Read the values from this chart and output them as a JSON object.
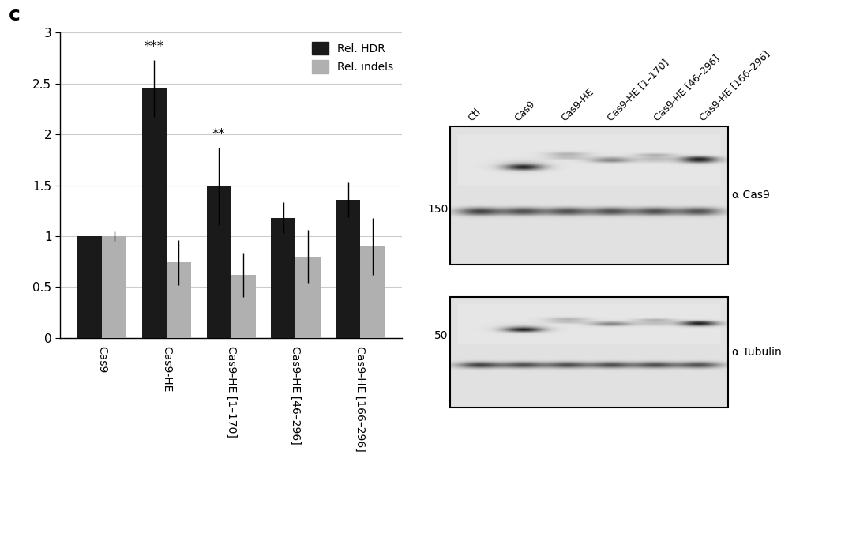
{
  "bar_categories": [
    "Cas9",
    "Cas9-HE",
    "Cas9-HE [1–170]",
    "Cas9-HE [46–296]",
    "Cas9-HE [166–296]"
  ],
  "hdr_values": [
    1.0,
    2.45,
    1.49,
    1.18,
    1.36
  ],
  "indel_values": [
    1.0,
    0.74,
    0.62,
    0.8,
    0.9
  ],
  "hdr_errors": [
    0.0,
    0.28,
    0.38,
    0.15,
    0.17
  ],
  "indel_errors": [
    0.05,
    0.22,
    0.22,
    0.26,
    0.28
  ],
  "hdr_color": "#1a1a1a",
  "indel_color": "#b0b0b0",
  "ylim": [
    0,
    3.0
  ],
  "yticks": [
    0,
    0.5,
    1.0,
    1.5,
    2.0,
    2.5,
    3.0
  ],
  "significance": [
    "",
    "***",
    "**",
    "",
    ""
  ],
  "legend_labels": [
    "Rel. HDR",
    "Rel. indels"
  ],
  "panel_label": "c",
  "wb_lane_labels": [
    "Ctl",
    "Cas9",
    "Cas9-HE",
    "Cas9-HE [1–170]",
    "Cas9-HE [46–296]",
    "Cas9-HE [166–296]"
  ],
  "wb_cas9_marker": "150",
  "wb_tubulin_marker": "50",
  "wb_antibody_labels": [
    "α Cas9",
    "α Tubulin"
  ],
  "background_color": "#ffffff",
  "text_color": "#000000"
}
